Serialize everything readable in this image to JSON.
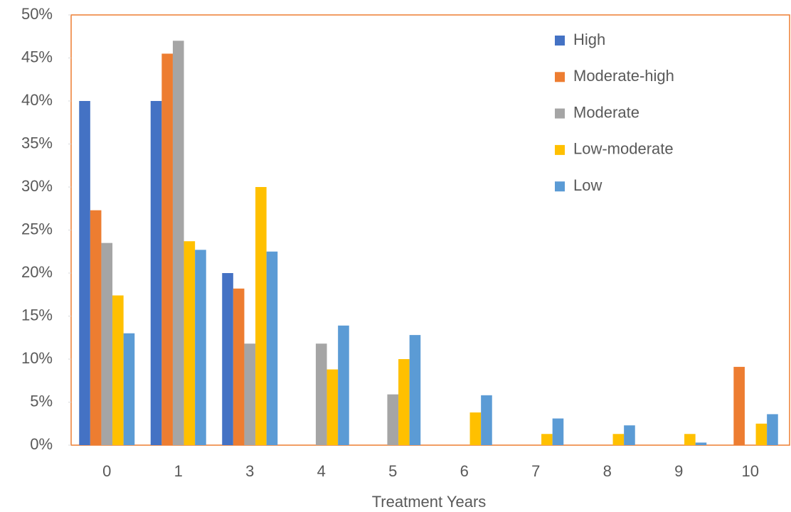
{
  "chart_data": {
    "type": "bar",
    "x_label": "Treatment Years",
    "categories": [
      "0",
      "1",
      "3",
      "4",
      "5",
      "6",
      "7",
      "8",
      "9",
      "10"
    ],
    "series": [
      {
        "name": "High",
        "color": "#4472c4",
        "values": [
          40,
          40,
          20,
          0,
          0,
          0,
          0,
          0,
          0,
          0
        ]
      },
      {
        "name": "Moderate-high",
        "color": "#ed7d31",
        "values": [
          27.3,
          45.5,
          18.2,
          0,
          0,
          0,
          0,
          0,
          0,
          9.1
        ]
      },
      {
        "name": "Moderate",
        "color": "#a5a5a5",
        "values": [
          23.5,
          47,
          11.8,
          11.8,
          5.9,
          0,
          0,
          0,
          0,
          0
        ]
      },
      {
        "name": "Low-moderate",
        "color": "#ffc000",
        "values": [
          17.4,
          23.7,
          30,
          8.8,
          10,
          3.8,
          1.3,
          1.3,
          1.3,
          2.5
        ]
      },
      {
        "name": "Low",
        "color": "#5b9bd5",
        "values": [
          13,
          22.7,
          22.5,
          13.9,
          12.8,
          5.8,
          3.1,
          2.3,
          0.3,
          3.6
        ]
      }
    ],
    "ylim": [
      0,
      50
    ],
    "yticks": [
      {
        "value": 0,
        "label": "0%"
      },
      {
        "value": 5,
        "label": "5%"
      },
      {
        "value": 10,
        "label": "10%"
      },
      {
        "value": 15,
        "label": "15%"
      },
      {
        "value": 20,
        "label": "20%"
      },
      {
        "value": 25,
        "label": "25%"
      },
      {
        "value": 30,
        "label": "30%"
      },
      {
        "value": 35,
        "label": "35%"
      },
      {
        "value": 40,
        "label": "40%"
      },
      {
        "value": 45,
        "label": "45%"
      },
      {
        "value": 50,
        "label": "50%"
      }
    ],
    "legend": "top-right"
  }
}
